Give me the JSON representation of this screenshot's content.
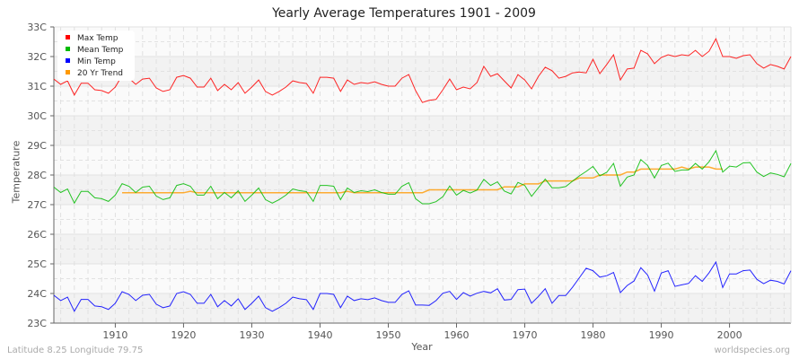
{
  "title": "Yearly Average Temperatures 1901 - 2009",
  "footer": {
    "left": "Latitude 8.25 Longitude 79.75",
    "right": "worldspecies.org"
  },
  "chart_data": {
    "type": "line",
    "title": "Yearly Average Temperatures 1901 - 2009",
    "xlabel": "Year",
    "ylabel": "Temperature",
    "xlim": [
      1901,
      2009
    ],
    "ylim": [
      23,
      33
    ],
    "x_ticks": [
      1910,
      1920,
      1930,
      1940,
      1950,
      1960,
      1970,
      1980,
      1990,
      2000
    ],
    "y_ticks": [
      "23C",
      "24C",
      "25C",
      "26C",
      "27C",
      "28C",
      "29C",
      "30C",
      "31C",
      "32C",
      "33C"
    ],
    "grid": true,
    "legend_position": "top-left",
    "x_start": 1901,
    "series": [
      {
        "name": "Max Temp",
        "color": "#ff0000",
        "values": [
          31.24,
          31.06,
          31.18,
          30.7,
          31.1,
          31.1,
          30.88,
          30.85,
          30.76,
          30.97,
          31.36,
          31.27,
          31.06,
          31.24,
          31.27,
          30.94,
          30.82,
          30.88,
          31.3,
          31.36,
          31.27,
          30.97,
          30.97,
          31.27,
          30.85,
          31.06,
          30.88,
          31.12,
          30.76,
          30.97,
          31.21,
          30.82,
          30.7,
          30.82,
          30.97,
          31.18,
          31.12,
          31.09,
          30.76,
          31.3,
          31.3,
          31.27,
          30.82,
          31.21,
          31.06,
          31.12,
          31.09,
          31.15,
          31.06,
          31.0,
          31.0,
          31.27,
          31.39,
          30.85,
          30.45,
          30.52,
          30.55,
          30.88,
          31.24,
          30.88,
          30.97,
          30.91,
          31.12,
          31.67,
          31.33,
          31.42,
          31.18,
          30.94,
          31.39,
          31.21,
          30.91,
          31.33,
          31.64,
          31.52,
          31.27,
          31.33,
          31.45,
          31.48,
          31.45,
          31.91,
          31.42,
          31.73,
          32.06,
          31.21,
          31.58,
          31.61,
          32.21,
          32.09,
          31.76,
          31.97,
          32.06,
          32.0,
          32.06,
          32.03,
          32.21,
          32.0,
          32.18,
          32.6,
          32.0,
          32.0,
          31.94,
          32.03,
          32.06,
          31.76,
          31.61,
          31.73,
          31.67,
          31.58,
          32.0
        ]
      },
      {
        "name": "Mean Temp",
        "color": "#00bb00",
        "values": [
          27.59,
          27.41,
          27.53,
          27.05,
          27.45,
          27.45,
          27.23,
          27.2,
          27.11,
          27.32,
          27.71,
          27.62,
          27.41,
          27.59,
          27.62,
          27.29,
          27.17,
          27.23,
          27.65,
          27.71,
          27.62,
          27.32,
          27.32,
          27.62,
          27.2,
          27.41,
          27.23,
          27.47,
          27.11,
          27.32,
          27.56,
          27.17,
          27.05,
          27.17,
          27.32,
          27.53,
          27.47,
          27.44,
          27.11,
          27.65,
          27.65,
          27.62,
          27.17,
          27.56,
          27.41,
          27.47,
          27.44,
          27.5,
          27.41,
          27.35,
          27.35,
          27.62,
          27.74,
          27.2,
          27.03,
          27.03,
          27.1,
          27.27,
          27.63,
          27.32,
          27.48,
          27.39,
          27.49,
          27.85,
          27.65,
          27.77,
          27.46,
          27.36,
          27.75,
          27.65,
          27.28,
          27.57,
          27.86,
          27.57,
          27.57,
          27.61,
          27.79,
          27.97,
          28.12,
          28.29,
          27.97,
          28.09,
          28.39,
          27.62,
          27.93,
          28.0,
          28.52,
          28.32,
          27.9,
          28.32,
          28.4,
          28.12,
          28.17,
          28.17,
          28.39,
          28.2,
          28.45,
          28.82,
          28.1,
          28.3,
          28.27,
          28.41,
          28.42,
          28.1,
          27.95,
          28.07,
          28.02,
          27.94,
          28.39
        ]
      },
      {
        "name": "Min Temp",
        "color": "#0000ff",
        "values": [
          23.94,
          23.76,
          23.88,
          23.4,
          23.8,
          23.8,
          23.58,
          23.55,
          23.46,
          23.67,
          24.06,
          23.97,
          23.76,
          23.94,
          23.97,
          23.64,
          23.52,
          23.58,
          24.0,
          24.06,
          23.97,
          23.67,
          23.67,
          23.97,
          23.55,
          23.76,
          23.58,
          23.82,
          23.46,
          23.67,
          23.91,
          23.52,
          23.4,
          23.52,
          23.67,
          23.88,
          23.82,
          23.79,
          23.46,
          24.0,
          24.0,
          23.97,
          23.52,
          23.91,
          23.76,
          23.82,
          23.79,
          23.85,
          23.76,
          23.7,
          23.7,
          23.97,
          24.09,
          23.61,
          23.61,
          23.6,
          23.76,
          24.01,
          24.07,
          23.8,
          24.03,
          23.91,
          24.01,
          24.07,
          24.02,
          24.16,
          23.78,
          23.8,
          24.13,
          24.15,
          23.67,
          23.9,
          24.16,
          23.67,
          23.93,
          23.93,
          24.21,
          24.53,
          24.85,
          24.77,
          24.55,
          24.6,
          24.71,
          24.03,
          24.27,
          24.42,
          24.87,
          24.62,
          24.08,
          24.69,
          24.77,
          24.24,
          24.29,
          24.34,
          24.6,
          24.41,
          24.7,
          25.06,
          24.2,
          24.66,
          24.66,
          24.77,
          24.79,
          24.48,
          24.33,
          24.45,
          24.41,
          24.32,
          24.77
        ]
      },
      {
        "name": "20 Yr Trend",
        "color": "#ff9900",
        "values": [
          null,
          null,
          null,
          null,
          null,
          null,
          null,
          null,
          null,
          null,
          27.4,
          27.4,
          27.4,
          27.4,
          27.4,
          27.4,
          27.4,
          27.4,
          27.4,
          27.4,
          27.45,
          27.4,
          27.4,
          27.4,
          27.4,
          27.4,
          27.4,
          27.4,
          27.4,
          27.4,
          27.4,
          27.4,
          27.4,
          27.4,
          27.4,
          27.4,
          27.4,
          27.4,
          27.4,
          27.4,
          27.4,
          27.4,
          27.4,
          27.45,
          27.4,
          27.4,
          27.4,
          27.4,
          27.4,
          27.4,
          27.4,
          27.4,
          27.4,
          27.4,
          27.4,
          27.5,
          27.5,
          27.5,
          27.5,
          27.5,
          27.5,
          27.5,
          27.5,
          27.5,
          27.5,
          27.5,
          27.6,
          27.6,
          27.6,
          27.7,
          27.7,
          27.7,
          27.8,
          27.8,
          27.8,
          27.8,
          27.8,
          27.9,
          27.9,
          27.9,
          28.0,
          28.0,
          28.0,
          28.0,
          28.1,
          28.1,
          28.2,
          28.2,
          28.2,
          28.2,
          28.2,
          28.2,
          28.27,
          28.2,
          28.27,
          28.27,
          28.27,
          28.2,
          28.2,
          null,
          null,
          null,
          null,
          null,
          null,
          null,
          null,
          null,
          null
        ]
      }
    ]
  }
}
